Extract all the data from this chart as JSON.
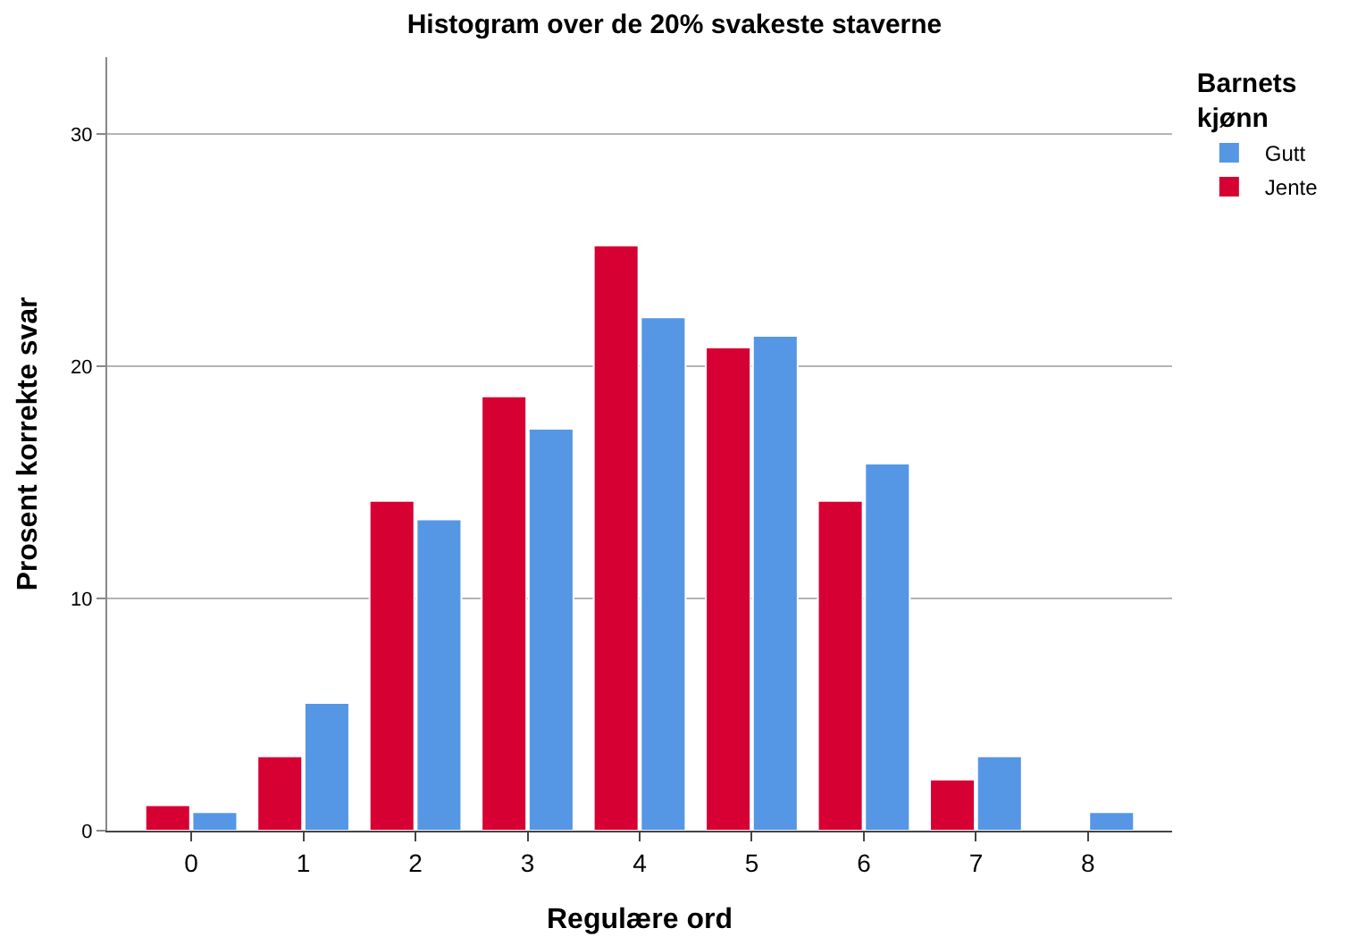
{
  "chart_data": {
    "type": "bar",
    "title": "Histogram over de 20% svakeste staverne",
    "xlabel": "Regulære ord",
    "ylabel": "Prosent korrekte svar",
    "legend_title": "Barnets kjønn",
    "categories": [
      "0",
      "1",
      "2",
      "3",
      "4",
      "5",
      "6",
      "7",
      "8"
    ],
    "series": [
      {
        "name": "Jente",
        "color": "#d70033",
        "values": [
          1.1,
          3.2,
          14.2,
          18.7,
          25.2,
          20.8,
          14.2,
          2.2,
          null
        ]
      },
      {
        "name": "Gutt",
        "color": "#5597e4",
        "values": [
          0.8,
          5.5,
          13.4,
          17.3,
          22.1,
          21.3,
          15.8,
          3.2,
          0.8
        ]
      }
    ],
    "ylim": [
      0,
      33.3
    ],
    "yticks": [
      0,
      10,
      20,
      30
    ],
    "grid": "y",
    "legend": "top right"
  }
}
